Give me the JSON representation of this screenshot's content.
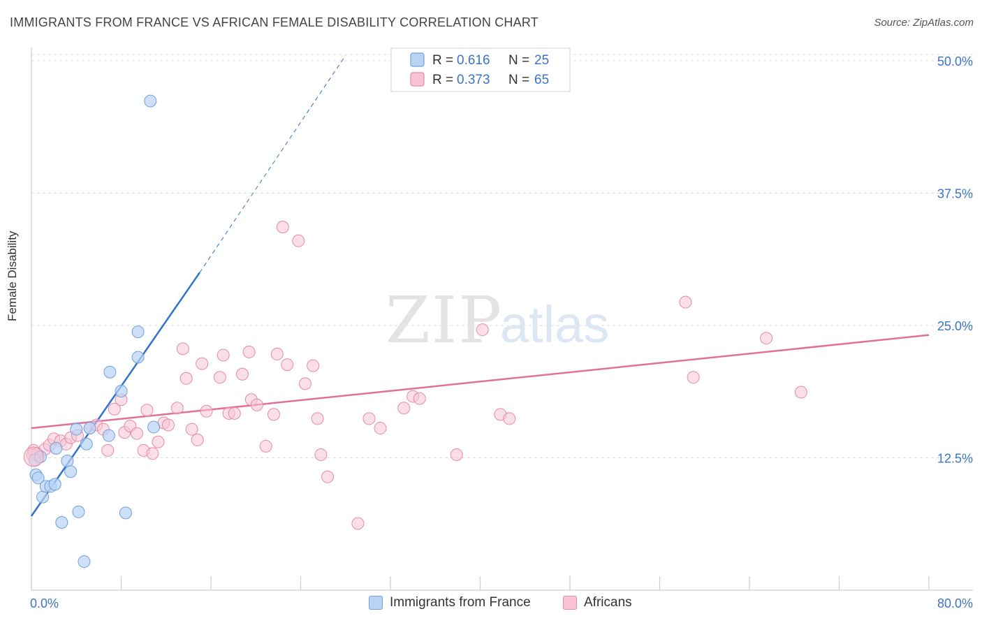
{
  "title": "IMMIGRANTS FROM FRANCE VS AFRICAN FEMALE DISABILITY CORRELATION CHART",
  "source": "Source: ZipAtlas.com",
  "watermark": {
    "zip": "ZIP",
    "atlas": "atlas"
  },
  "colors": {
    "blue_fill": "#b9d3f5",
    "blue_stroke": "#6f9fdd",
    "blue_line": "#2f72cc",
    "pink_fill": "#f8c4d3",
    "pink_stroke": "#e68aa8",
    "pink_line": "#e0719a",
    "tick_text": "#3b74c8"
  },
  "legend_top": [
    {
      "r_label": "R = ",
      "r_value": "0.616",
      "n_label": "N = ",
      "n_value": "25"
    },
    {
      "r_label": "R = ",
      "r_value": "0.373",
      "n_label": "N = ",
      "n_value": "65"
    }
  ],
  "chart_data": {
    "type": "scatter",
    "title": "IMMIGRANTS FROM FRANCE VS AFRICAN FEMALE DISABILITY CORRELATION CHART",
    "xlabel": "",
    "ylabel": "Female Disability",
    "xlim": [
      0,
      80
    ],
    "ylim": [
      0,
      50
    ],
    "x_tick_labels": [
      "0.0%",
      "80.0%"
    ],
    "y_ticks": [
      12.5,
      25.0,
      37.5,
      50.0
    ],
    "y_tick_labels": [
      "12.5%",
      "25.0%",
      "37.5%",
      "50.0%"
    ],
    "grid": true,
    "legend_position": "top-center",
    "series": [
      {
        "name": "Immigrants from France",
        "r": 0.616,
        "n": 25,
        "trend": {
          "x": [
            0,
            15
          ],
          "y": [
            7.0,
            30.0
          ],
          "dashed_to": [
            28,
            50.5
          ]
        },
        "points": [
          [
            0.3,
            12.3
          ],
          [
            0.4,
            10.9
          ],
          [
            0.6,
            10.6
          ],
          [
            1.0,
            8.8
          ],
          [
            1.3,
            9.8
          ],
          [
            1.7,
            9.8
          ],
          [
            2.1,
            10.0
          ],
          [
            2.7,
            6.4
          ],
          [
            3.2,
            12.2
          ],
          [
            3.5,
            11.2
          ],
          [
            4.2,
            7.4
          ],
          [
            4.7,
            2.7
          ],
          [
            4.9,
            13.8
          ],
          [
            5.2,
            15.3
          ],
          [
            6.9,
            14.6
          ],
          [
            7.0,
            20.6
          ],
          [
            8.0,
            18.8
          ],
          [
            8.4,
            7.3
          ],
          [
            9.5,
            22.0
          ],
          [
            9.5,
            24.4
          ],
          [
            10.6,
            46.2
          ],
          [
            10.9,
            15.4
          ],
          [
            2.2,
            13.4
          ],
          [
            0.8,
            12.6
          ],
          [
            4.0,
            15.2
          ]
        ]
      },
      {
        "name": "Africans",
        "r": 0.373,
        "n": 65,
        "trend": {
          "x": [
            0,
            80
          ],
          "y": [
            15.3,
            24.1
          ]
        },
        "points": [
          [
            0.2,
            13.2
          ],
          [
            0.5,
            12.9
          ],
          [
            1.2,
            13.3
          ],
          [
            1.6,
            13.7
          ],
          [
            2.0,
            14.3
          ],
          [
            2.6,
            14.1
          ],
          [
            3.1,
            13.8
          ],
          [
            3.5,
            14.4
          ],
          [
            4.1,
            14.6
          ],
          [
            5.2,
            15.3
          ],
          [
            5.8,
            15.6
          ],
          [
            6.4,
            15.2
          ],
          [
            6.8,
            13.2
          ],
          [
            7.4,
            17.1
          ],
          [
            8.0,
            18.0
          ],
          [
            8.3,
            14.9
          ],
          [
            8.8,
            15.5
          ],
          [
            9.4,
            14.8
          ],
          [
            10.0,
            13.2
          ],
          [
            10.3,
            17.0
          ],
          [
            10.8,
            12.9
          ],
          [
            11.3,
            14.0
          ],
          [
            11.8,
            15.8
          ],
          [
            12.2,
            15.6
          ],
          [
            13.0,
            17.2
          ],
          [
            13.5,
            22.8
          ],
          [
            13.8,
            20.0
          ],
          [
            14.3,
            15.2
          ],
          [
            14.8,
            14.2
          ],
          [
            15.2,
            21.4
          ],
          [
            15.6,
            16.9
          ],
          [
            16.8,
            20.1
          ],
          [
            17.1,
            22.2
          ],
          [
            17.6,
            16.7
          ],
          [
            18.1,
            16.7
          ],
          [
            18.8,
            20.4
          ],
          [
            19.4,
            22.5
          ],
          [
            19.6,
            18.0
          ],
          [
            20.1,
            17.5
          ],
          [
            20.9,
            13.6
          ],
          [
            21.6,
            16.6
          ],
          [
            21.9,
            22.3
          ],
          [
            22.4,
            34.3
          ],
          [
            22.8,
            21.3
          ],
          [
            23.8,
            33.0
          ],
          [
            24.4,
            19.5
          ],
          [
            25.1,
            21.2
          ],
          [
            25.5,
            16.2
          ],
          [
            25.8,
            12.8
          ],
          [
            26.4,
            10.7
          ],
          [
            29.1,
            6.3
          ],
          [
            30.1,
            16.2
          ],
          [
            31.1,
            15.3
          ],
          [
            33.2,
            17.2
          ],
          [
            34.0,
            18.3
          ],
          [
            34.6,
            18.1
          ],
          [
            37.9,
            12.8
          ],
          [
            40.2,
            24.6
          ],
          [
            41.8,
            16.6
          ],
          [
            42.6,
            16.2
          ],
          [
            58.3,
            27.2
          ],
          [
            59.0,
            20.1
          ],
          [
            65.5,
            23.8
          ],
          [
            68.6,
            18.7
          ],
          [
            0.1,
            12.8
          ]
        ]
      }
    ]
  },
  "legend_bottom": [
    "Immigrants from France",
    "Africans"
  ]
}
